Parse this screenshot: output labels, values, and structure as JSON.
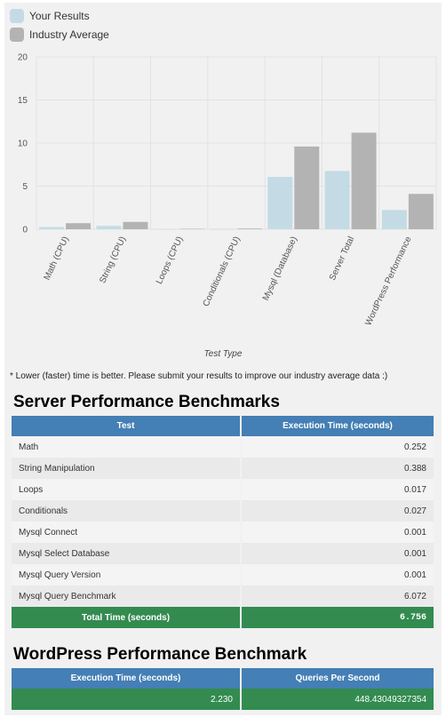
{
  "legend": {
    "items": [
      {
        "label": "Your Results",
        "color": "#c4dbe5"
      },
      {
        "label": "Industry Average",
        "color": "#b3b3b3"
      }
    ]
  },
  "chart_data": {
    "type": "bar",
    "xlabel": "Test Type",
    "ylabel": "",
    "ylim": [
      0,
      20
    ],
    "yticks": [
      0,
      5,
      10,
      15,
      20
    ],
    "categories": [
      "Math (CPU)",
      "String (CPU)",
      "Loops (CPU)",
      "Conditionals (CPU)",
      "Mysql (Database)",
      "Server Total",
      "WordPress Performance"
    ],
    "series": [
      {
        "name": "Your Results",
        "color": "#c4dbe5",
        "values": [
          0.25,
          0.39,
          0.02,
          0.03,
          6.07,
          6.76,
          2.23
        ]
      },
      {
        "name": "Industry Average",
        "color": "#b3b3b3",
        "values": [
          0.7,
          0.85,
          0.05,
          0.08,
          9.6,
          11.2,
          4.1
        ]
      }
    ]
  },
  "note": "* Lower (faster) time is better. Please submit your results to improve our industry average data :)",
  "server": {
    "title": "Server Performance Benchmarks",
    "headers": [
      "Test",
      "Execution Time (seconds)"
    ],
    "rows": [
      {
        "test": "Math",
        "time": "0.252"
      },
      {
        "test": "String Manipulation",
        "time": "0.388"
      },
      {
        "test": "Loops",
        "time": "0.017"
      },
      {
        "test": "Conditionals",
        "time": "0.027"
      },
      {
        "test": "Mysql Connect",
        "time": "0.001"
      },
      {
        "test": "Mysql Select Database",
        "time": "0.001"
      },
      {
        "test": "Mysql Query Version",
        "time": "0.001"
      },
      {
        "test": "Mysql Query Benchmark",
        "time": "6.072"
      }
    ],
    "total_label": "Total Time (seconds)",
    "total_value": "6.756"
  },
  "wordpress": {
    "title": "WordPress Performance Benchmark",
    "headers": [
      "Execution Time (seconds)",
      "Queries Per Second"
    ],
    "execution_time": "2.230",
    "queries_per_second": "448.43049327354"
  }
}
